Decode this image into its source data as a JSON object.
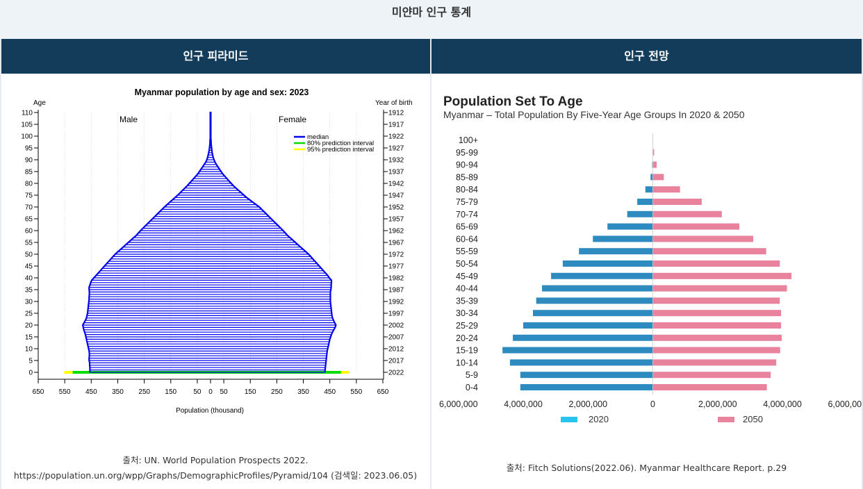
{
  "page": {
    "title": "미얀마 인구 통계"
  },
  "panels": {
    "left": {
      "header": "인구 피라미드",
      "source": "출처: UN. World Population Prospects 2022. https://population.un.org/wpp/Graphs/DemographicProfiles/Pyramid/104 (검색일: 2023.06.05)"
    },
    "right": {
      "header": "인구 전망",
      "source": "출처: Fitch Solutions(2022.06). Myanmar Healthcare Report. p.29"
    }
  },
  "chart_data": [
    {
      "type": "bar",
      "title": "Myanmar population by age and sex: 2023",
      "xlabel": "Population (thousand)",
      "ylabel_left": "Age",
      "ylabel_right": "Year of birth",
      "side_labels": [
        "Male",
        "Female"
      ],
      "legend": [
        "median",
        "80% prediction interval",
        "95% prediction interval"
      ],
      "colors": {
        "median": "#0000ee",
        "pi80": "#00dd00",
        "pi95": "#ffff00"
      },
      "x_ticks": [
        "650",
        "550",
        "450",
        "350",
        "250",
        "150",
        "50",
        "0",
        "50",
        "150",
        "250",
        "350",
        "450",
        "550",
        "650"
      ],
      "x_tick_values": [
        -650,
        -550,
        -450,
        -350,
        -250,
        -150,
        -50,
        0,
        50,
        150,
        250,
        350,
        450,
        550,
        650
      ],
      "age_ticks": [
        0,
        5,
        10,
        15,
        20,
        25,
        30,
        35,
        40,
        45,
        50,
        55,
        60,
        65,
        70,
        75,
        80,
        85,
        90,
        95,
        100,
        105,
        110
      ],
      "birth_ticks": [
        "2022",
        "2017",
        "2012",
        "2007",
        "2002",
        "1997",
        "1992",
        "1987",
        "1982",
        "1977",
        "1972",
        "1967",
        "1962",
        "1957",
        "1952",
        "1947",
        "1942",
        "1937",
        "1932",
        "1927",
        "1922",
        "1917",
        "1912"
      ],
      "ages": [
        0,
        1,
        2,
        3,
        4,
        5,
        6,
        7,
        8,
        9,
        10,
        11,
        12,
        13,
        14,
        15,
        16,
        17,
        18,
        19,
        20,
        21,
        22,
        23,
        24,
        25,
        26,
        27,
        28,
        29,
        30,
        31,
        32,
        33,
        34,
        35,
        36,
        37,
        38,
        39,
        40,
        41,
        42,
        43,
        44,
        45,
        46,
        47,
        48,
        49,
        50,
        51,
        52,
        53,
        54,
        55,
        56,
        57,
        58,
        59,
        60,
        61,
        62,
        63,
        64,
        65,
        66,
        67,
        68,
        69,
        70,
        71,
        72,
        73,
        74,
        75,
        76,
        77,
        78,
        79,
        80,
        81,
        82,
        83,
        84,
        85,
        86,
        87,
        88,
        89,
        90,
        91,
        92,
        93,
        94,
        95,
        96,
        97,
        98,
        99,
        100,
        101,
        102,
        103,
        104,
        105,
        106,
        107,
        108,
        109,
        110
      ],
      "male": [
        455,
        455,
        455,
        456,
        456,
        458,
        458,
        457,
        457,
        458,
        460,
        462,
        464,
        466,
        468,
        470,
        472,
        475,
        478,
        480,
        482,
        477,
        472,
        468,
        466,
        464,
        463,
        462,
        461,
        460,
        459,
        458,
        458,
        457,
        457,
        458,
        458,
        455,
        452,
        448,
        440,
        432,
        424,
        416,
        408,
        400,
        392,
        384,
        376,
        368,
        360,
        350,
        340,
        330,
        320,
        310,
        300,
        290,
        280,
        272,
        264,
        255,
        246,
        237,
        228,
        219,
        210,
        201,
        192,
        183,
        174,
        164,
        154,
        144,
        134,
        124,
        115,
        106,
        97,
        88,
        80,
        72,
        64,
        56,
        48,
        42,
        36,
        30,
        24,
        18,
        14,
        11,
        9,
        7,
        5,
        4,
        3,
        2,
        2,
        1,
        1,
        1,
        1,
        1,
        1,
        1,
        1,
        1,
        1,
        1,
        1
      ],
      "female": [
        432,
        432,
        433,
        434,
        435,
        436,
        437,
        438,
        439,
        440,
        442,
        444,
        446,
        448,
        450,
        453,
        456,
        460,
        465,
        470,
        473,
        468,
        464,
        460,
        458,
        457,
        456,
        455,
        454,
        453,
        452,
        452,
        452,
        452,
        452,
        454,
        455,
        455,
        456,
        456,
        448,
        442,
        434,
        426,
        418,
        410,
        402,
        394,
        386,
        378,
        370,
        360,
        350,
        340,
        330,
        320,
        310,
        300,
        290,
        282,
        274,
        265,
        256,
        247,
        238,
        229,
        220,
        211,
        202,
        193,
        184,
        172,
        160,
        148,
        136,
        126,
        116,
        106,
        96,
        86,
        78,
        70,
        62,
        54,
        46,
        40,
        34,
        28,
        22,
        17,
        13,
        10,
        8,
        6,
        5,
        4,
        3,
        2,
        2,
        1,
        1,
        1,
        1,
        1,
        1,
        1,
        1,
        1,
        1,
        1,
        1
      ],
      "pi_age0": {
        "male_80": 520,
        "male_95": 552,
        "female_80": 492,
        "female_95": 522
      },
      "xlim": [
        -650,
        650
      ],
      "ylim": [
        0,
        110
      ]
    },
    {
      "type": "bar",
      "title": "Population Set To Age",
      "subtitle": "Myanmar – Total Population By Five-Year Age Groups In 2020 & 2050",
      "categories": [
        "100+",
        "95-99",
        "90-94",
        "85-89",
        "80-84",
        "75-79",
        "70-74",
        "65-69",
        "60-64",
        "55-59",
        "50-54",
        "45-49",
        "40-44",
        "35-39",
        "30-34",
        "25-29",
        "20-24",
        "15-19",
        "10-14",
        "5-9",
        "0-4"
      ],
      "series": [
        {
          "name": "2020",
          "color": "#2e8bc0",
          "legend_color": "#29c3ef",
          "values": [
            0,
            5000,
            20000,
            70000,
            230000,
            480000,
            790000,
            1400000,
            1850000,
            2280000,
            2780000,
            3140000,
            3420000,
            3600000,
            3700000,
            4000000,
            4320000,
            4640000,
            4410000,
            4090000,
            4090000
          ]
        },
        {
          "name": "2050",
          "color": "#e8829d",
          "legend_color": "#e9849f",
          "values": [
            10000,
            40000,
            120000,
            340000,
            840000,
            1510000,
            2130000,
            2670000,
            3100000,
            3500000,
            3920000,
            4280000,
            4140000,
            3920000,
            3960000,
            3960000,
            3980000,
            3930000,
            3810000,
            3640000,
            3520000
          ]
        }
      ],
      "x_ticks": [
        "6,000,000",
        "4,000,000",
        "2,000,000",
        "0",
        "2,000,000",
        "4,000,000",
        "6,000,000"
      ],
      "x_tick_values": [
        -6000000,
        -4000000,
        -2000000,
        0,
        2000000,
        4000000,
        6000000
      ],
      "xlim": [
        -6000000,
        6000000
      ]
    }
  ]
}
